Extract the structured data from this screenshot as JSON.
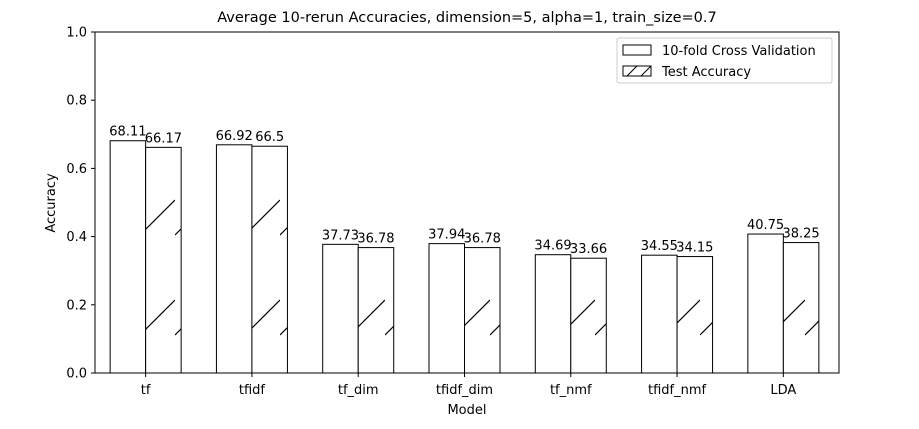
{
  "chart_data": {
    "type": "bar",
    "title": "Average 10-rerun Accuracies, dimension=5, alpha=1, train_size=0.7",
    "xlabel": "Model",
    "ylabel": "Accuracy",
    "ylim": [
      0,
      1.0
    ],
    "yticks": [
      "0.0",
      "0.2",
      "0.4",
      "0.6",
      "0.8",
      "1.0"
    ],
    "categories": [
      "tf",
      "tfidf",
      "tf_dim",
      "tfidf_dim",
      "tf_nmf",
      "tfidf_nmf",
      "LDA"
    ],
    "series": [
      {
        "name": "10-fold Cross Validation",
        "fill": "#ffffff",
        "hatch": "none",
        "values": [
          0.6811,
          0.6692,
          0.3773,
          0.3794,
          0.3469,
          0.3455,
          0.4075
        ],
        "labels": [
          "68.11",
          "66.92",
          "37.73",
          "37.94",
          "34.69",
          "34.55",
          "40.75"
        ]
      },
      {
        "name": "Test Accuracy",
        "fill": "#ffffff",
        "hatch": "diagonal",
        "values": [
          0.6617,
          0.665,
          0.3678,
          0.3678,
          0.3366,
          0.3415,
          0.3825
        ],
        "labels": [
          "66.17",
          "66.5",
          "36.78",
          "36.78",
          "33.66",
          "34.15",
          "38.25"
        ]
      }
    ],
    "grid": false,
    "legend_position": "top-right"
  }
}
